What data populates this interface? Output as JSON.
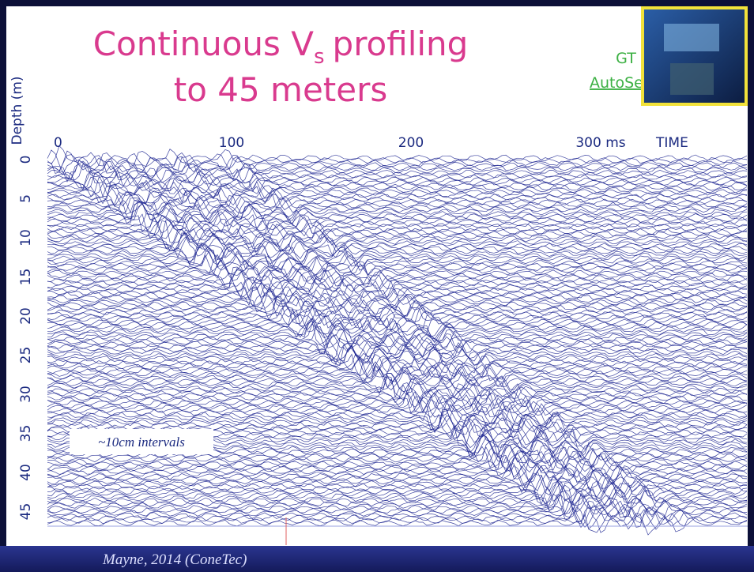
{
  "slide": {
    "title_lines": [
      "Continuous V",
      "s",
      "profiling",
      "to 45 meters"
    ],
    "badge": {
      "line1": "GT",
      "line2": "AutoSeis"
    },
    "axis": {
      "y_label": "Depth (m)",
      "x_ticks": [
        "0",
        "100",
        "200",
        "300 ms"
      ],
      "x_label": "TIME",
      "y_ticks": [
        "0",
        "5",
        "10",
        "15",
        "20",
        "25",
        "30",
        "35",
        "40",
        "45"
      ]
    },
    "annotation": "~10cm intervals",
    "footer": "Mayne, 2014 (ConeTec)"
  }
}
